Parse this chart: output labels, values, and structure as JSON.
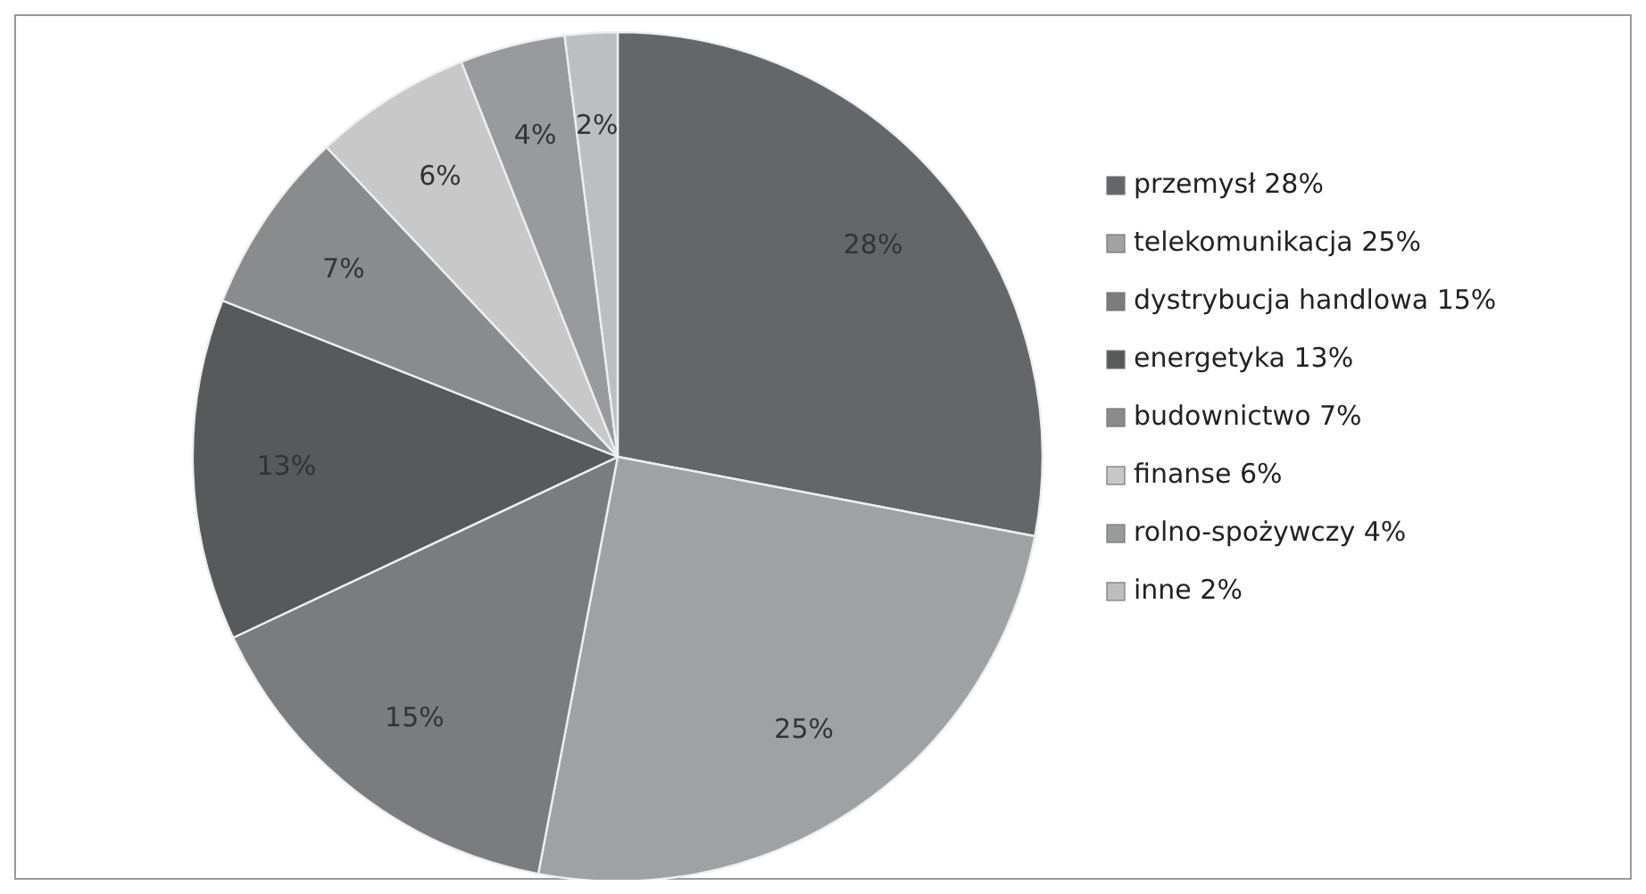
{
  "chart_data": {
    "type": "pie",
    "categories": [
      "przemysł 28%",
      "telekomunikacja 25%",
      "dystrybucja handlowa 15%",
      "energetyka 13%",
      "budownictwo 7%",
      "finanse 6%",
      "rolno-spożywczy 4%",
      "inne 2%"
    ],
    "values": [
      28,
      25,
      15,
      13,
      7,
      6,
      4,
      2
    ],
    "colors": [
      "#65666a",
      "#a0a1a3",
      "#7b7c7e",
      "#58595b",
      "#8a8b8d",
      "#c8c8c8",
      "#999a9c",
      "#bdbebf"
    ],
    "value_labels": [
      "28%",
      "25%",
      "15%",
      "13%",
      "7%",
      "6%",
      "4%",
      "2%"
    ],
    "legend": "right"
  }
}
